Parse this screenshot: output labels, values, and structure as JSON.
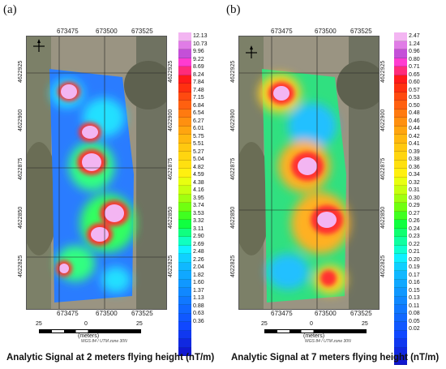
{
  "panel_a": {
    "label": "(a)",
    "top_ticks": [
      "673475",
      "673500",
      "673525"
    ],
    "bottom_ticks": [
      "673475",
      "673500",
      "673525"
    ],
    "left_ticks": [
      "4622925",
      "4622900",
      "4622875",
      "4622850",
      "4622825"
    ],
    "right_ticks": [
      "4622925",
      "4622900",
      "4622875",
      "4622850",
      "4622825"
    ],
    "colorbar_labels": [
      "12.13",
      "10.73",
      "9.96",
      "9.22",
      "8.69",
      "8.24",
      "7.84",
      "7.48",
      "7.15",
      "6.84",
      "6.54",
      "6.27",
      "6.01",
      "5.75",
      "5.51",
      "5.27",
      "5.04",
      "4.82",
      "4.59",
      "4.38",
      "4.16",
      "3.95",
      "3.74",
      "3.53",
      "3.32",
      "3.11",
      "2.90",
      "2.69",
      "2.48",
      "2.26",
      "2.04",
      "1.82",
      "1.60",
      "1.37",
      "1.13",
      "0.88",
      "0.63",
      "0.36"
    ],
    "scale": {
      "ticks": [
        "25",
        "0",
        "25"
      ],
      "unit": "(meters)",
      "projection": "WGS 84 / UTM zone 30N"
    },
    "caption": "Analytic Signal at 2 meters flying height (nT/m)"
  },
  "panel_b": {
    "label": "(b)",
    "top_ticks": [
      "673475",
      "673500",
      "673525"
    ],
    "bottom_ticks": [
      "673475",
      "673500",
      "673525"
    ],
    "left_ticks": [
      "4622925",
      "4622900",
      "4622875",
      "4622850",
      "4622825"
    ],
    "right_ticks": [
      "4622925",
      "4622900",
      "4622875",
      "4622850",
      "4622825"
    ],
    "colorbar_labels": [
      "2.47",
      "1.24",
      "0.96",
      "0.80",
      "0.71",
      "0.65",
      "0.60",
      "0.57",
      "0.53",
      "0.50",
      "0.48",
      "0.46",
      "0.44",
      "0.42",
      "0.41",
      "0.39",
      "0.38",
      "0.36",
      "0.34",
      "0.32",
      "0.31",
      "0.30",
      "0.29",
      "0.27",
      "0.26",
      "0.24",
      "0.23",
      "0.22",
      "0.21",
      "0.20",
      "0.19",
      "0.17",
      "0.16",
      "0.15",
      "0.13",
      "0.11",
      "0.08",
      "0.05",
      "0.02"
    ],
    "scale": {
      "ticks": [
        "25",
        "0",
        "25"
      ],
      "unit": "(meters)",
      "projection": "WGS 84 / UTM zone 30N"
    },
    "caption": "Analytic Signal at 7 meters flying height (nT/m)"
  },
  "colors": {
    "ramp_a": [
      "#f3b5f2",
      "#e07ce6",
      "#c44fd8",
      "#ff3bd0",
      "#ff2b7a",
      "#ff1a1a",
      "#ff3010",
      "#ff4a10",
      "#ff6010",
      "#ff7a10",
      "#ff9010",
      "#ffa510",
      "#ffb810",
      "#ffc810",
      "#ffd510",
      "#ffe010",
      "#fff010",
      "#e8ff10",
      "#c8ff10",
      "#a0ff10",
      "#70ff10",
      "#40ff20",
      "#10ff40",
      "#10ff80",
      "#10ffc0",
      "#10f0ff",
      "#10d0ff",
      "#10b8ff",
      "#10a8ff",
      "#1098ff",
      "#1088ff",
      "#1078ff",
      "#1068ff",
      "#1058ff",
      "#1048ff",
      "#1038f0",
      "#1028e0",
      "#1018d0"
    ],
    "ramp_b": [
      "#f3b5f2",
      "#e07ce6",
      "#c44fd8",
      "#ff3bd0",
      "#ff2b7a",
      "#ff1a1a",
      "#ff3010",
      "#ff4a10",
      "#ff6010",
      "#ff7a10",
      "#ff9010",
      "#ffa510",
      "#ffb810",
      "#ffc810",
      "#ffd510",
      "#ffe010",
      "#fff010",
      "#e8ff10",
      "#c8ff10",
      "#a0ff10",
      "#70ff10",
      "#40ff20",
      "#10ff40",
      "#10ff70",
      "#10ffa0",
      "#10ffd0",
      "#10f0ff",
      "#10d0ff",
      "#10b8ff",
      "#10a8ff",
      "#1098ff",
      "#1088ff",
      "#1078ff",
      "#1068ff",
      "#1058ff",
      "#1048ff",
      "#1038f0",
      "#1028e0",
      "#1018d0"
    ]
  }
}
